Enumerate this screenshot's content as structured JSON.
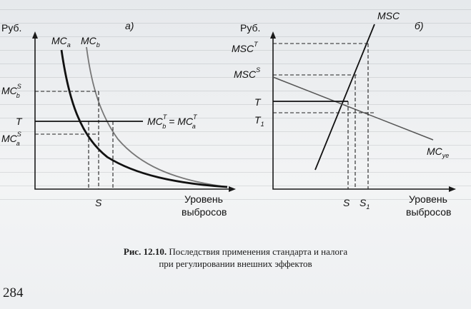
{
  "panel_a": {
    "y_unit": "Руб.",
    "tag": "а)",
    "x_label_line1": "Уровень",
    "x_label_line2": "выбросов",
    "mc_a": "MC",
    "mc_a_sub": "a",
    "mc_b": "MC",
    "mc_b_sub": "b",
    "mc_b_s": "MC",
    "mc_b_s_sub": "b",
    "mc_b_s_sup": "S",
    "t_label": "T",
    "mc_a_s": "MC",
    "mc_a_s_sub": "a",
    "mc_a_s_sup": "S",
    "tax_eq_left": "MC",
    "tax_eq_left_sub": "b",
    "tax_eq_left_sup": "T",
    "tax_eq_sign": " = ",
    "tax_eq_right": "MC",
    "tax_eq_right_sub": "a",
    "tax_eq_right_sup": "T",
    "s_label": "S"
  },
  "panel_b": {
    "y_unit": "Руб.",
    "tag": "б)",
    "x_label_line1": "Уровень",
    "x_label_line2": "выбросов",
    "msc": "MSC",
    "msc_t": "MSC",
    "msc_t_sup": "T",
    "msc_s": "MSC",
    "msc_s_sup": "S",
    "t_label": "T",
    "t1_label": "T",
    "t1_sub": "1",
    "mc_ye": "MC",
    "mc_ye_sub": "уе",
    "s_label": "S",
    "s1_label": "S",
    "s1_sub": "1"
  },
  "caption": {
    "fig_no": "Рис. 12.10.",
    "line1": " Последствия применения стандарта и налога",
    "line2": "при регулировании внешних эффектов"
  },
  "page_number": "284"
}
